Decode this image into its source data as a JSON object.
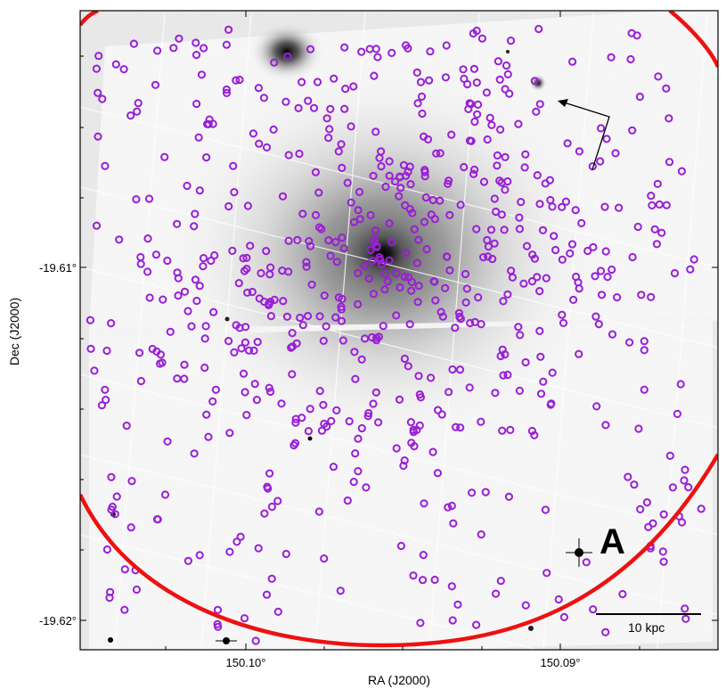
{
  "figure": {
    "x_axis_label": "RA (J2000)",
    "y_axis_label": "Dec (J2000)",
    "x_ticks": [
      "150.10°",
      "150.09°"
    ],
    "y_ticks": [
      "-19.61°",
      "-19.62°"
    ],
    "panel_label": "A",
    "scale_bar_label": "10 kpc"
  },
  "colors": {
    "circle_markers": "#9a1fd6",
    "boundary_ellipse": "#ee1111",
    "arrow": "#000000",
    "background_sky": "#f2f2f2"
  }
}
